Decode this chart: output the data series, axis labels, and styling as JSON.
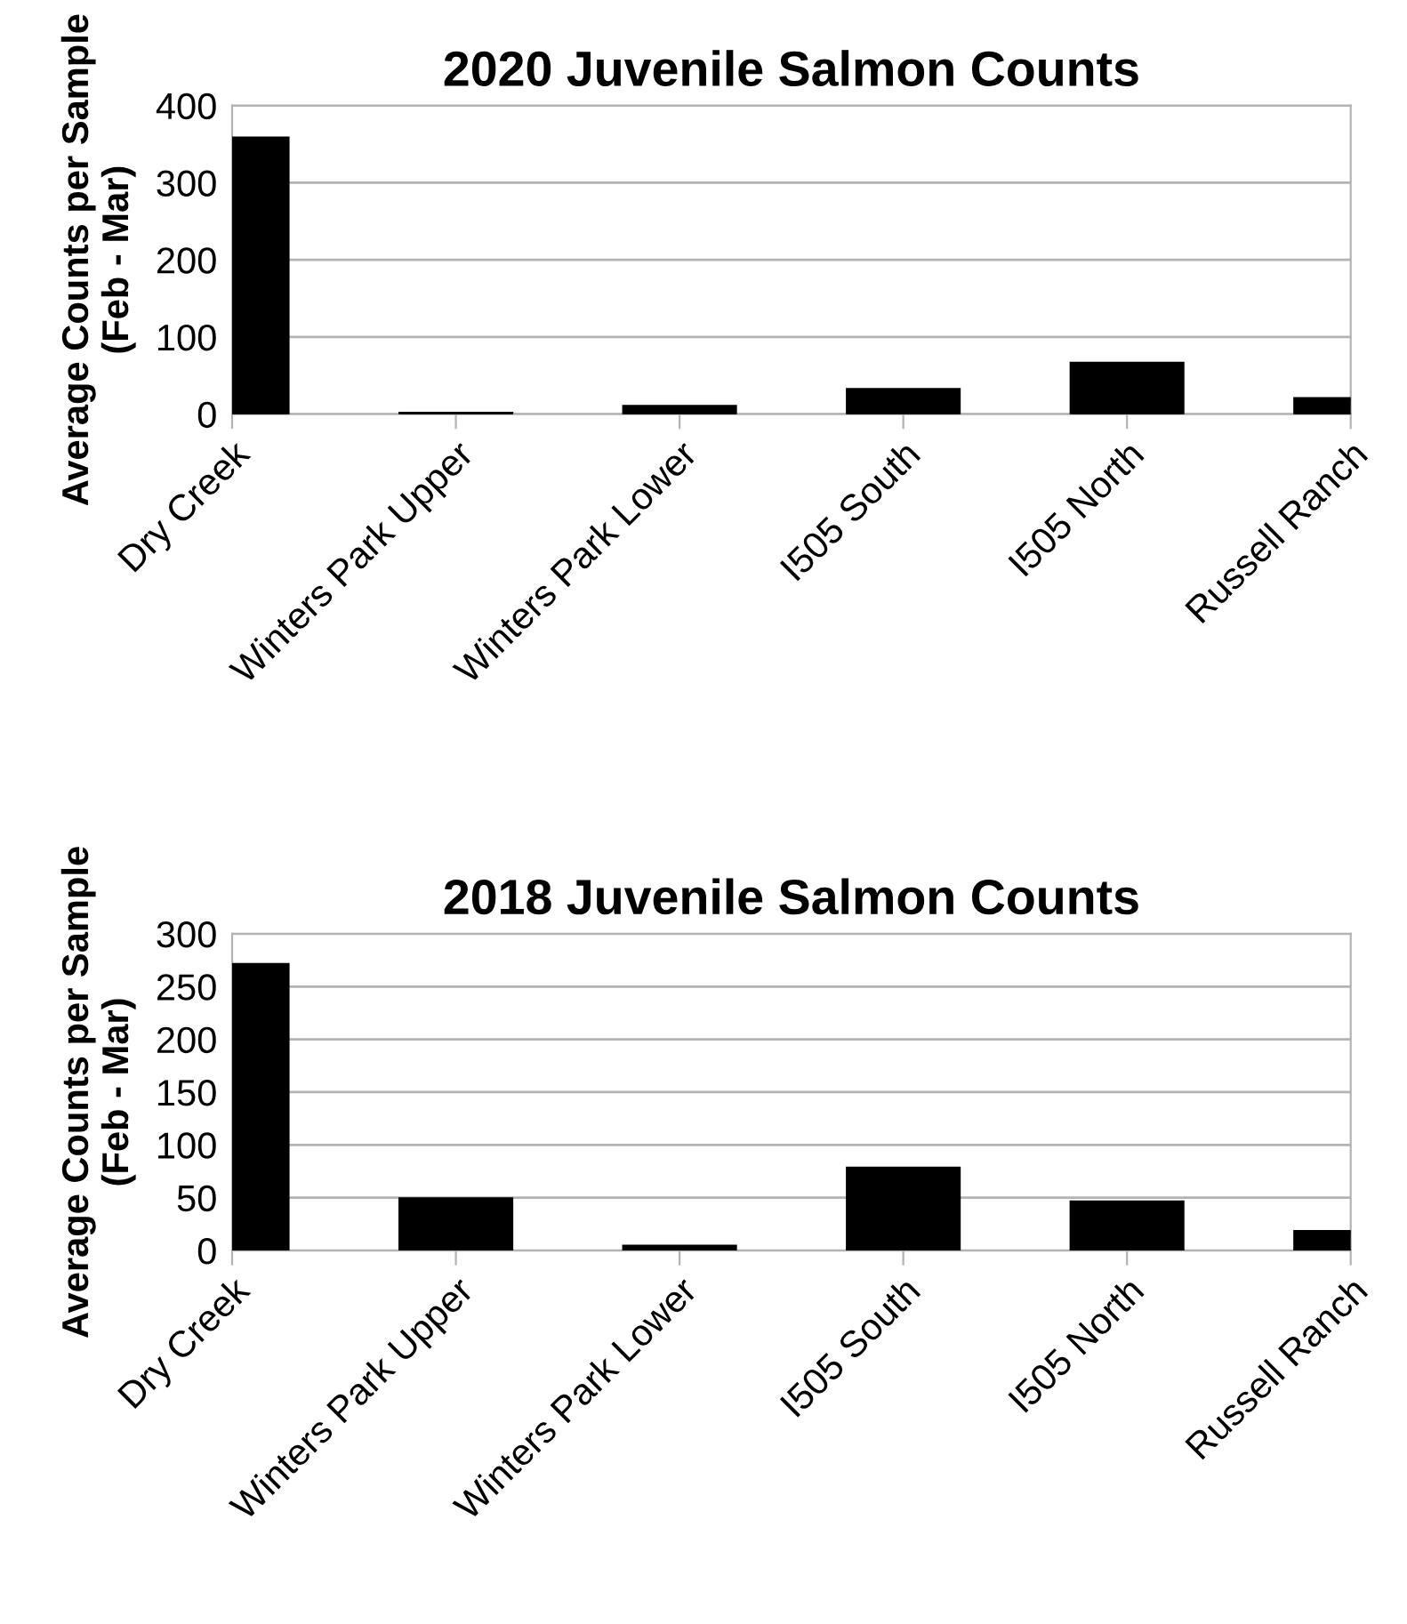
{
  "chart_data": [
    {
      "type": "bar",
      "title": "2020 Juvenile Salmon Counts",
      "ylabel": "Average Counts per Sample\n(Feb - Mar)",
      "categories": [
        "Dry Creek",
        "Winters Park Upper",
        "Winters Park Lower",
        "I505 South",
        "I505 North",
        "Russell Ranch"
      ],
      "series": [
        {
          "color": "#000000",
          "values": [
            358,
            1,
            10,
            32,
            66,
            20
          ]
        }
      ],
      "ylim": [
        0,
        400
      ],
      "yticks": [
        0,
        100,
        200,
        300,
        400
      ],
      "grid": "y",
      "legend": false
    },
    {
      "type": "bar",
      "title": "2018 Juvenile Salmon Counts",
      "ylabel": "Average Counts per Sample\n(Feb - Mar)",
      "categories": [
        "Dry Creek",
        "Winters Park Upper",
        "Winters Park Lower",
        "I505 South",
        "I505 North",
        "Russell Ranch"
      ],
      "series": [
        {
          "color": "#000000",
          "values": [
            271,
            49,
            4,
            78,
            46,
            18
          ]
        }
      ],
      "ylim": [
        0,
        300
      ],
      "yticks": [
        0,
        50,
        100,
        150,
        200,
        250,
        300
      ],
      "grid": "y",
      "legend": false
    }
  ]
}
